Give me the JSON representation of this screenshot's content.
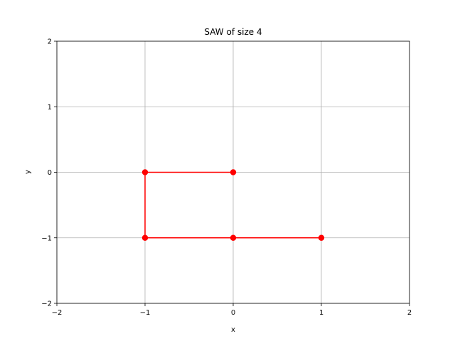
{
  "chart_data": {
    "type": "line",
    "title": "SAW of size 4",
    "xlabel": "x",
    "ylabel": "y",
    "xlim": [
      -2,
      2
    ],
    "ylim": [
      -2,
      2
    ],
    "xticks": [
      -2,
      -1,
      0,
      1,
      2
    ],
    "yticks": [
      -2,
      -1,
      0,
      1,
      2
    ],
    "xtick_labels": [
      "−2",
      "−1",
      "0",
      "1",
      "2"
    ],
    "ytick_labels": [
      "−2",
      "−1",
      "0",
      "1",
      "2"
    ],
    "grid": true,
    "series": [
      {
        "x": [
          0,
          -1,
          -1,
          0,
          1
        ],
        "y": [
          0,
          0,
          -1,
          -1,
          -1
        ],
        "color": "#ff0000",
        "marker": "circle"
      }
    ]
  }
}
